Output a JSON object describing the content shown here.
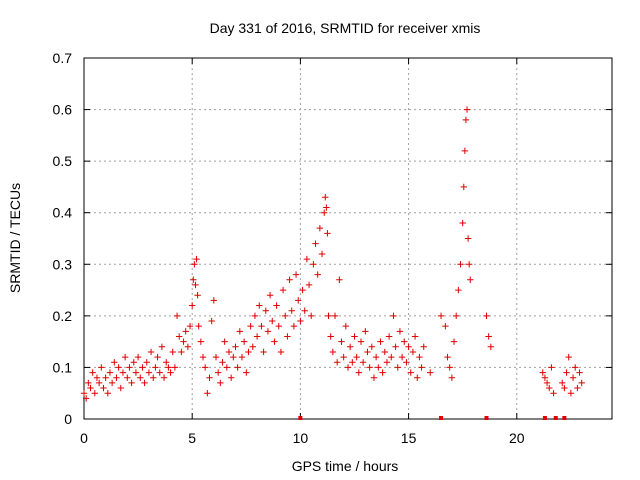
{
  "chart_data": {
    "type": "scatter",
    "title": "Day 331 of 2016, SRMTID for receiver xmis",
    "xlabel": "GPS time / hours",
    "ylabel": "SRMTID / TECUs",
    "xlim": [
      0,
      24.4
    ],
    "ylim": [
      0,
      0.7
    ],
    "x_ticks": [
      0,
      5,
      10,
      15,
      20
    ],
    "y_ticks": [
      0,
      0.1,
      0.2,
      0.3,
      0.4,
      0.5,
      0.6,
      0.7
    ],
    "x_tick_labels": [
      "0",
      "5",
      "10",
      "15",
      "20"
    ],
    "y_tick_labels": [
      "0",
      "0.1",
      "0.2",
      "0.3",
      "0.4",
      "0.5",
      "0.6",
      "0.7"
    ],
    "grid": true,
    "marker": "+",
    "color": "#e00000",
    "zero_markers_x": [
      10.0,
      16.5,
      18.6,
      21.3,
      21.8,
      22.2
    ],
    "series": [
      {
        "name": "SRMTID",
        "points": [
          [
            0.0,
            0.05
          ],
          [
            0.1,
            0.04
          ],
          [
            0.2,
            0.07
          ],
          [
            0.3,
            0.06
          ],
          [
            0.4,
            0.09
          ],
          [
            0.5,
            0.05
          ],
          [
            0.6,
            0.08
          ],
          [
            0.7,
            0.07
          ],
          [
            0.8,
            0.1
          ],
          [
            0.9,
            0.06
          ],
          [
            1.0,
            0.08
          ],
          [
            1.1,
            0.05
          ],
          [
            1.2,
            0.09
          ],
          [
            1.3,
            0.07
          ],
          [
            1.4,
            0.11
          ],
          [
            1.5,
            0.08
          ],
          [
            1.6,
            0.1
          ],
          [
            1.7,
            0.06
          ],
          [
            1.8,
            0.09
          ],
          [
            1.9,
            0.12
          ],
          [
            2.0,
            0.08
          ],
          [
            2.1,
            0.1
          ],
          [
            2.2,
            0.07
          ],
          [
            2.3,
            0.11
          ],
          [
            2.4,
            0.09
          ],
          [
            2.5,
            0.12
          ],
          [
            2.6,
            0.08
          ],
          [
            2.7,
            0.1
          ],
          [
            2.8,
            0.07
          ],
          [
            2.9,
            0.11
          ],
          [
            3.0,
            0.09
          ],
          [
            3.1,
            0.13
          ],
          [
            3.2,
            0.08
          ],
          [
            3.3,
            0.1
          ],
          [
            3.4,
            0.12
          ],
          [
            3.5,
            0.09
          ],
          [
            3.6,
            0.14
          ],
          [
            3.7,
            0.08
          ],
          [
            3.8,
            0.11
          ],
          [
            3.9,
            0.1
          ],
          [
            4.0,
            0.09
          ],
          [
            4.1,
            0.13
          ],
          [
            4.2,
            0.1
          ],
          [
            4.3,
            0.2
          ],
          [
            4.4,
            0.16
          ],
          [
            4.5,
            0.13
          ],
          [
            4.6,
            0.15
          ],
          [
            4.7,
            0.17
          ],
          [
            4.8,
            0.14
          ],
          [
            4.9,
            0.18
          ],
          [
            5.0,
            0.22
          ],
          [
            5.05,
            0.27
          ],
          [
            5.1,
            0.3
          ],
          [
            5.15,
            0.26
          ],
          [
            5.2,
            0.31
          ],
          [
            5.25,
            0.24
          ],
          [
            5.3,
            0.18
          ],
          [
            5.4,
            0.15
          ],
          [
            5.5,
            0.12
          ],
          [
            5.6,
            0.1
          ],
          [
            5.7,
            0.05
          ],
          [
            5.8,
            0.08
          ],
          [
            5.9,
            0.19
          ],
          [
            6.0,
            0.23
          ],
          [
            6.1,
            0.12
          ],
          [
            6.2,
            0.09
          ],
          [
            6.3,
            0.07
          ],
          [
            6.4,
            0.11
          ],
          [
            6.5,
            0.15
          ],
          [
            6.6,
            0.1
          ],
          [
            6.7,
            0.13
          ],
          [
            6.8,
            0.08
          ],
          [
            6.9,
            0.12
          ],
          [
            7.0,
            0.14
          ],
          [
            7.1,
            0.1
          ],
          [
            7.2,
            0.17
          ],
          [
            7.3,
            0.12
          ],
          [
            7.4,
            0.15
          ],
          [
            7.5,
            0.09
          ],
          [
            7.6,
            0.13
          ],
          [
            7.7,
            0.18
          ],
          [
            7.8,
            0.14
          ],
          [
            7.9,
            0.2
          ],
          [
            8.0,
            0.16
          ],
          [
            8.1,
            0.22
          ],
          [
            8.2,
            0.18
          ],
          [
            8.3,
            0.13
          ],
          [
            8.4,
            0.21
          ],
          [
            8.5,
            0.17
          ],
          [
            8.6,
            0.24
          ],
          [
            8.7,
            0.19
          ],
          [
            8.8,
            0.15
          ],
          [
            8.9,
            0.22
          ],
          [
            9.0,
            0.18
          ],
          [
            9.1,
            0.13
          ],
          [
            9.2,
            0.25
          ],
          [
            9.3,
            0.2
          ],
          [
            9.4,
            0.16
          ],
          [
            9.5,
            0.27
          ],
          [
            9.6,
            0.21
          ],
          [
            9.7,
            0.18
          ],
          [
            9.8,
            0.28
          ],
          [
            9.9,
            0.23
          ],
          [
            10.0,
            0.19
          ],
          [
            10.1,
            0.25
          ],
          [
            10.2,
            0.21
          ],
          [
            10.3,
            0.31
          ],
          [
            10.4,
            0.26
          ],
          [
            10.5,
            0.2
          ],
          [
            10.6,
            0.3
          ],
          [
            10.7,
            0.34
          ],
          [
            10.8,
            0.28
          ],
          [
            10.9,
            0.37
          ],
          [
            11.0,
            0.32
          ],
          [
            11.1,
            0.4
          ],
          [
            11.15,
            0.43
          ],
          [
            11.2,
            0.41
          ],
          [
            11.25,
            0.36
          ],
          [
            11.3,
            0.2
          ],
          [
            11.4,
            0.16
          ],
          [
            11.5,
            0.13
          ],
          [
            11.6,
            0.2
          ],
          [
            11.7,
            0.11
          ],
          [
            11.8,
            0.27
          ],
          [
            11.9,
            0.15
          ],
          [
            12.0,
            0.12
          ],
          [
            12.1,
            0.18
          ],
          [
            12.2,
            0.1
          ],
          [
            12.3,
            0.14
          ],
          [
            12.4,
            0.11
          ],
          [
            12.5,
            0.16
          ],
          [
            12.6,
            0.12
          ],
          [
            12.7,
            0.09
          ],
          [
            12.8,
            0.15
          ],
          [
            12.9,
            0.11
          ],
          [
            13.0,
            0.17
          ],
          [
            13.1,
            0.13
          ],
          [
            13.2,
            0.1
          ],
          [
            13.3,
            0.14
          ],
          [
            13.4,
            0.08
          ],
          [
            13.5,
            0.12
          ],
          [
            13.6,
            0.1
          ],
          [
            13.7,
            0.15
          ],
          [
            13.8,
            0.09
          ],
          [
            13.9,
            0.13
          ],
          [
            14.0,
            0.11
          ],
          [
            14.1,
            0.16
          ],
          [
            14.2,
            0.12
          ],
          [
            14.3,
            0.2
          ],
          [
            14.4,
            0.14
          ],
          [
            14.5,
            0.1
          ],
          [
            14.6,
            0.17
          ],
          [
            14.7,
            0.12
          ],
          [
            14.8,
            0.15
          ],
          [
            14.9,
            0.11
          ],
          [
            15.0,
            0.14
          ],
          [
            15.1,
            0.09
          ],
          [
            15.2,
            0.13
          ],
          [
            15.3,
            0.16
          ],
          [
            15.4,
            0.08
          ],
          [
            15.5,
            0.12
          ],
          [
            15.6,
            0.1
          ],
          [
            15.7,
            0.14
          ],
          [
            16.0,
            0.09
          ],
          [
            16.5,
            0.2
          ],
          [
            16.7,
            0.18
          ],
          [
            16.8,
            0.12
          ],
          [
            16.9,
            0.1
          ],
          [
            17.0,
            0.08
          ],
          [
            17.1,
            0.15
          ],
          [
            17.2,
            0.2
          ],
          [
            17.3,
            0.25
          ],
          [
            17.4,
            0.3
          ],
          [
            17.5,
            0.38
          ],
          [
            17.55,
            0.45
          ],
          [
            17.6,
            0.52
          ],
          [
            17.65,
            0.58
          ],
          [
            17.7,
            0.6
          ],
          [
            17.75,
            0.35
          ],
          [
            17.8,
            0.3
          ],
          [
            17.85,
            0.27
          ],
          [
            18.6,
            0.2
          ],
          [
            18.7,
            0.16
          ],
          [
            18.8,
            0.14
          ],
          [
            21.2,
            0.09
          ],
          [
            21.3,
            0.08
          ],
          [
            21.4,
            0.07
          ],
          [
            21.5,
            0.06
          ],
          [
            21.6,
            0.1
          ],
          [
            21.7,
            0.05
          ],
          [
            22.1,
            0.07
          ],
          [
            22.2,
            0.06
          ],
          [
            22.3,
            0.09
          ],
          [
            22.4,
            0.12
          ],
          [
            22.5,
            0.05
          ],
          [
            22.6,
            0.08
          ],
          [
            22.7,
            0.1
          ],
          [
            22.8,
            0.06
          ],
          [
            22.9,
            0.09
          ],
          [
            23.0,
            0.07
          ]
        ]
      }
    ]
  }
}
